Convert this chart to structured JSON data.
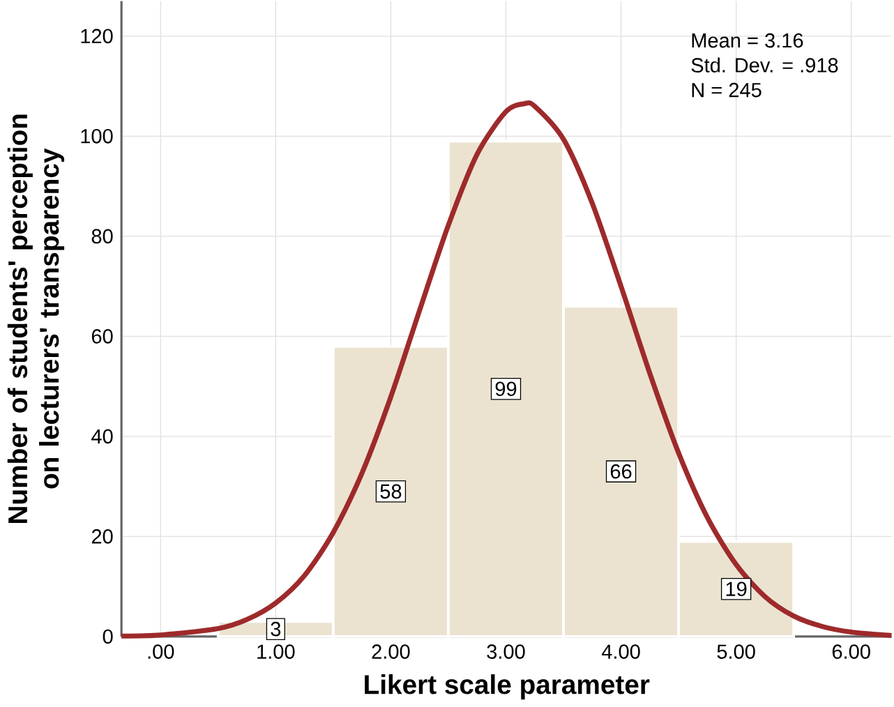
{
  "chart_data": {
    "type": "histogram",
    "xlabel": "Likert scale parameter",
    "ylabel": "Number of students' perception on lecturers' transparency",
    "bins": [
      0.5,
      1.5,
      2.5,
      3.5,
      4.5,
      5.5
    ],
    "values": [
      3,
      58,
      99,
      66,
      19
    ],
    "color": "#ebe3d0",
    "value_labels": [
      "3",
      "58",
      "99",
      "66",
      "19"
    ],
    "series": [
      {
        "type": "line",
        "color": "#9e2a2b",
        "x": [
          -0.34,
          0.0,
          0.5,
          0.75,
          1.0,
          1.25,
          1.5,
          1.75,
          2.0,
          2.25,
          2.5,
          2.75,
          3.0,
          3.16,
          3.25,
          3.5,
          3.75,
          4.0,
          4.25,
          4.5,
          4.75,
          5.0,
          5.25,
          5.5,
          5.75,
          6.0,
          6.35
        ],
        "values": [
          0.1,
          0.3,
          1.6,
          3.4,
          6.7,
          12.2,
          20.8,
          32.7,
          47.9,
          65.2,
          82.2,
          96.4,
          104.9,
          106.5,
          106.0,
          99.4,
          86.6,
          70.0,
          52.6,
          36.7,
          23.8,
          14.4,
          8.0,
          4.1,
          2.0,
          0.9,
          0.2
        ]
      }
    ],
    "xlim": [
      -0.34,
      6.35
    ],
    "ylim": [
      0,
      127
    ],
    "xticks": [
      {
        "value": 0,
        "label": ".00"
      },
      {
        "value": 1,
        "label": "1.00"
      },
      {
        "value": 2,
        "label": "2.00"
      },
      {
        "value": 3,
        "label": "3.00"
      },
      {
        "value": 4,
        "label": "4.00"
      },
      {
        "value": 5,
        "label": "5.00"
      },
      {
        "value": 6,
        "label": "6.00"
      }
    ],
    "yticks": [
      0,
      20,
      40,
      60,
      80,
      100,
      120
    ],
    "grid": true,
    "marker": "none",
    "line_style": "solid",
    "annotations": [
      "Mean = 3.16",
      "Std. Dev. = .918",
      "N = 245"
    ]
  }
}
